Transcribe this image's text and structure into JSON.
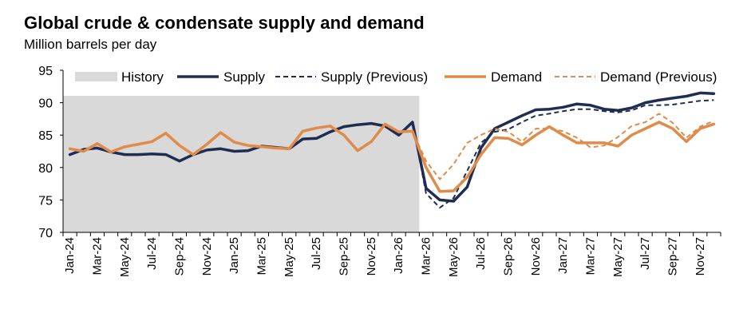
{
  "chart_data": {
    "type": "line",
    "title": "Global crude & condensate supply and demand",
    "subtitle": "Million barrels per day",
    "ylim": [
      70,
      95
    ],
    "yticks": [
      70,
      75,
      80,
      85,
      90,
      95
    ],
    "x": [
      "Jan-24",
      "Feb-24",
      "Mar-24",
      "Apr-24",
      "May-24",
      "Jun-24",
      "Jul-24",
      "Aug-24",
      "Sep-24",
      "Oct-24",
      "Nov-24",
      "Dec-24",
      "Jan-25",
      "Feb-25",
      "Mar-25",
      "Apr-25",
      "May-25",
      "Jun-25",
      "Jul-25",
      "Aug-25",
      "Sep-25",
      "Oct-25",
      "Nov-25",
      "Dec-25",
      "Jan-26",
      "Feb-26",
      "Mar-26",
      "Apr-26",
      "May-26",
      "Jun-26",
      "Jul-26",
      "Aug-26",
      "Sep-26",
      "Oct-26",
      "Nov-26",
      "Dec-26",
      "Jan-27",
      "Feb-27",
      "Mar-27",
      "Apr-27",
      "May-27",
      "Jun-27",
      "Jul-27",
      "Aug-27",
      "Sep-27",
      "Oct-27",
      "Nov-27",
      "Dec-27"
    ],
    "xtick_labels": [
      "Jan-24",
      "Mar-24",
      "May-24",
      "Jul-24",
      "Sep-24",
      "Nov-24",
      "Jan-25",
      "Mar-25",
      "May-25",
      "Jul-25",
      "Sep-25",
      "Nov-25",
      "Jan-26",
      "Mar-26",
      "May-26",
      "Jul-26",
      "Sep-26",
      "Nov-26",
      "Jan-27",
      "Mar-27",
      "May-27",
      "Jul-27",
      "Sep-27",
      "Nov-27"
    ],
    "history_range": [
      "Jan-24",
      "Feb-26"
    ],
    "legend": {
      "placement": "top",
      "entries": [
        "History",
        "Supply",
        "Supply (Previous)",
        "Demand",
        "Demand (Previous)"
      ]
    },
    "colors": {
      "history": "#d9d9d9",
      "supply": "#1f2d52",
      "demand": "#e08b4a"
    },
    "series": [
      {
        "name": "Supply",
        "style": "solid",
        "color": "#1f2d52",
        "values": [
          82.0,
          82.8,
          83.0,
          82.4,
          82.0,
          82.0,
          82.1,
          82.0,
          81.0,
          82.0,
          82.7,
          82.9,
          82.5,
          82.6,
          83.3,
          83.1,
          82.9,
          84.4,
          84.5,
          85.5,
          86.3,
          86.6,
          86.8,
          86.4,
          85.0,
          87.0,
          76.8,
          75.0,
          74.8,
          77.0,
          83.0,
          86.0,
          87.0,
          88.0,
          88.9,
          89.0,
          89.3,
          89.8,
          89.6,
          89.0,
          88.8,
          89.2,
          90.0,
          90.4,
          90.7,
          91.0,
          91.5,
          91.4
        ]
      },
      {
        "name": "Supply (Previous)",
        "style": "dashed",
        "color": "#1f2d52",
        "values": [
          82.0,
          82.8,
          83.0,
          82.4,
          82.0,
          82.0,
          82.1,
          82.0,
          81.0,
          82.0,
          82.7,
          82.9,
          82.5,
          82.6,
          83.3,
          83.1,
          82.9,
          84.4,
          84.5,
          85.5,
          86.3,
          86.6,
          86.8,
          86.4,
          85.0,
          87.0,
          76.0,
          73.8,
          75.3,
          79.5,
          83.8,
          85.5,
          85.9,
          87.0,
          88.0,
          88.3,
          88.7,
          89.0,
          89.0,
          88.7,
          88.5,
          88.8,
          89.6,
          89.6,
          89.7,
          90.0,
          90.3,
          90.4
        ]
      },
      {
        "name": "Demand",
        "style": "solid",
        "color": "#e08b4a",
        "values": [
          82.9,
          82.5,
          83.7,
          82.4,
          83.2,
          83.6,
          84.0,
          85.3,
          83.4,
          82.0,
          83.6,
          85.4,
          83.9,
          83.4,
          83.2,
          83.0,
          82.9,
          85.6,
          86.1,
          86.4,
          85.0,
          82.6,
          84.0,
          86.7,
          85.5,
          85.6,
          80.0,
          76.3,
          76.4,
          78.5,
          82.0,
          84.6,
          84.5,
          83.5,
          85.0,
          86.3,
          85.0,
          83.8,
          83.8,
          83.8,
          83.3,
          85.0,
          86.0,
          87.0,
          86.0,
          84.0,
          86.0,
          86.7
        ]
      },
      {
        "name": "Demand (Previous)",
        "style": "dashed",
        "color": "#e08b4a",
        "values": [
          82.9,
          82.5,
          83.7,
          82.4,
          83.2,
          83.6,
          84.0,
          85.3,
          83.4,
          82.0,
          83.6,
          85.4,
          83.9,
          83.4,
          83.2,
          83.0,
          82.9,
          85.6,
          86.1,
          86.4,
          85.0,
          82.6,
          84.0,
          86.7,
          85.5,
          85.6,
          81.0,
          78.2,
          80.5,
          83.8,
          85.0,
          86.0,
          85.5,
          84.0,
          86.0,
          86.0,
          85.6,
          84.6,
          83.1,
          83.4,
          84.7,
          86.4,
          87.0,
          88.3,
          86.9,
          84.6,
          86.3,
          87.2
        ]
      }
    ]
  }
}
